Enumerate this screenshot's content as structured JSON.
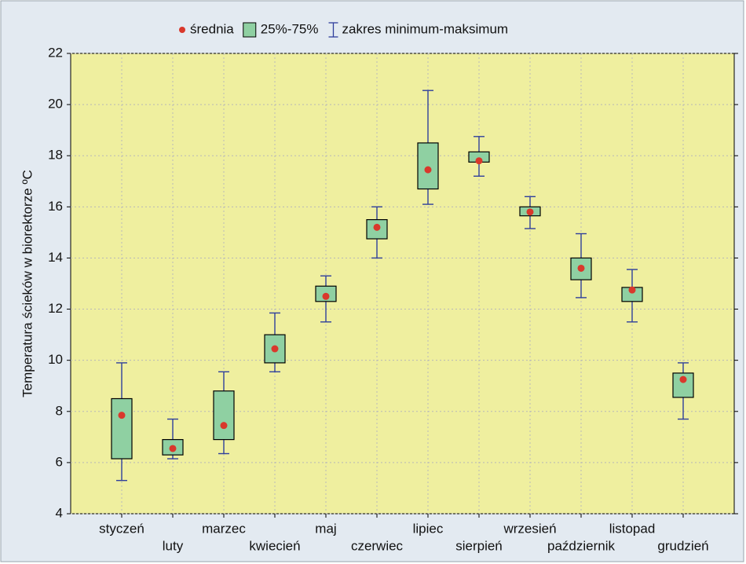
{
  "chart_data": {
    "type": "box",
    "ylabel": "Temperatura ścieków w biorektorze ºC",
    "categories": [
      "styczeń",
      "luty",
      "marzec",
      "kwiecień",
      "maj",
      "czerwiec",
      "lipiec",
      "sierpień",
      "wrzesień",
      "październik",
      "listopad",
      "grudzień"
    ],
    "series": [
      {
        "name": "średnia",
        "color": "#d9382c",
        "values": [
          7.85,
          6.55,
          7.45,
          10.45,
          12.5,
          15.2,
          17.45,
          17.8,
          15.8,
          13.6,
          12.75,
          9.25
        ]
      },
      {
        "name": "25%-75%",
        "color": "#8fd0a2",
        "q1": [
          6.15,
          6.3,
          6.9,
          9.9,
          12.3,
          14.75,
          16.7,
          17.75,
          15.65,
          13.15,
          12.3,
          8.55
        ],
        "q3": [
          8.5,
          6.9,
          8.8,
          11.0,
          12.9,
          15.5,
          18.5,
          18.15,
          16.0,
          14.0,
          12.85,
          9.5
        ]
      },
      {
        "name": "zakres minimum-maksimum",
        "color": "#2f3f9c",
        "min": [
          5.3,
          6.15,
          6.35,
          9.55,
          11.5,
          14.0,
          16.1,
          17.2,
          15.15,
          12.45,
          11.5,
          7.7
        ],
        "max": [
          9.9,
          7.7,
          9.55,
          11.85,
          13.3,
          16.0,
          20.55,
          18.75,
          16.4,
          14.95,
          13.55,
          9.9
        ]
      }
    ],
    "ylim": [
      4,
      22
    ],
    "yticks": [
      4,
      6,
      8,
      10,
      12,
      14,
      16,
      18,
      20,
      22
    ],
    "grid": true
  }
}
